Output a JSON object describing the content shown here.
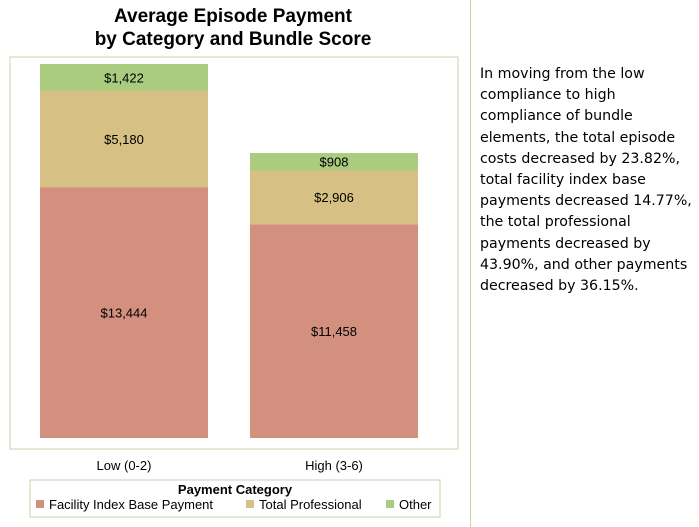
{
  "chart_data": {
    "type": "bar",
    "stacked": true,
    "title_lines": [
      "Average Episode Payment",
      "by Category and Bundle Score"
    ],
    "categories": [
      "Low (0-2)",
      "High (3-6)"
    ],
    "series": [
      {
        "name": "Facility Index Base Payment",
        "values": [
          13444,
          11458
        ],
        "labels": [
          "$13,444",
          "$11,458"
        ],
        "color": "#d4907e"
      },
      {
        "name": "Total Professional",
        "values": [
          5180,
          2906
        ],
        "labels": [
          "$5,180",
          "$2,906"
        ],
        "color": "#d6c083"
      },
      {
        "name": "Other",
        "values": [
          1422,
          908
        ],
        "labels": [
          "$1,422",
          "$908"
        ],
        "color": "#a9cc7f"
      }
    ],
    "ylim": [
      0,
      20800
    ],
    "legend": {
      "title": "Payment Category",
      "placement": "bottom"
    },
    "colors": {
      "frame": "#c9d3a8",
      "panel": "#ffffff",
      "text": "#000000"
    }
  },
  "note": {
    "text": "In moving from the low compliance to high compliance of bundle elements, the total episode costs decreased by 23.82%, total facility index base payments decreased 14.77%, the total professional payments decreased by 43.90%, and other payments decreased by 36.15%."
  }
}
